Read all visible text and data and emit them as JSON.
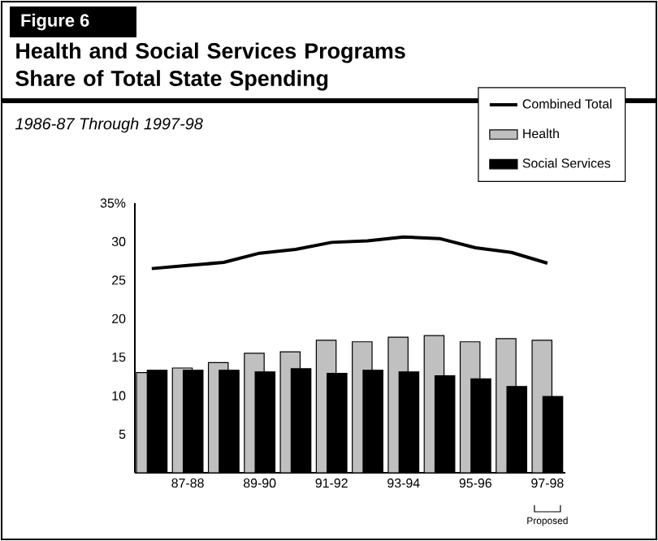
{
  "chart_data": {
    "type": "bar",
    "title": "Health and Social Services Programs Share of Total State Spending",
    "subtitle": "1986-87 Through 1997-98",
    "annotations": [
      "Figure 6",
      "Proposed"
    ],
    "categories": [
      null,
      "87-88",
      null,
      "89-90",
      null,
      "91-92",
      null,
      "93-94",
      null,
      "95-96",
      null,
      "97-98"
    ],
    "series": [
      {
        "name": "Combined Total",
        "type": "line",
        "color": "#000000",
        "values": [
          26.5,
          26.9,
          27.3,
          28.5,
          29.0,
          29.9,
          30.1,
          30.6,
          30.4,
          29.2,
          28.6,
          27.2
        ]
      },
      {
        "name": "Health",
        "color": "#c0c0c0",
        "values": [
          13.0,
          13.6,
          14.3,
          15.5,
          15.7,
          17.2,
          17.0,
          17.6,
          17.8,
          17.0,
          17.4,
          17.2
        ]
      },
      {
        "name": "Social Services",
        "color": "#000000",
        "values": [
          13.3,
          13.3,
          13.3,
          13.1,
          13.5,
          12.9,
          13.3,
          13.1,
          12.6,
          12.2,
          11.2,
          9.9
        ]
      }
    ],
    "ylim": [
      0,
      35
    ],
    "yticks": [
      5,
      10,
      15,
      20,
      25,
      30,
      {
        "value": 35,
        "label": "35%"
      }
    ],
    "legend": "top right",
    "grid": false
  }
}
